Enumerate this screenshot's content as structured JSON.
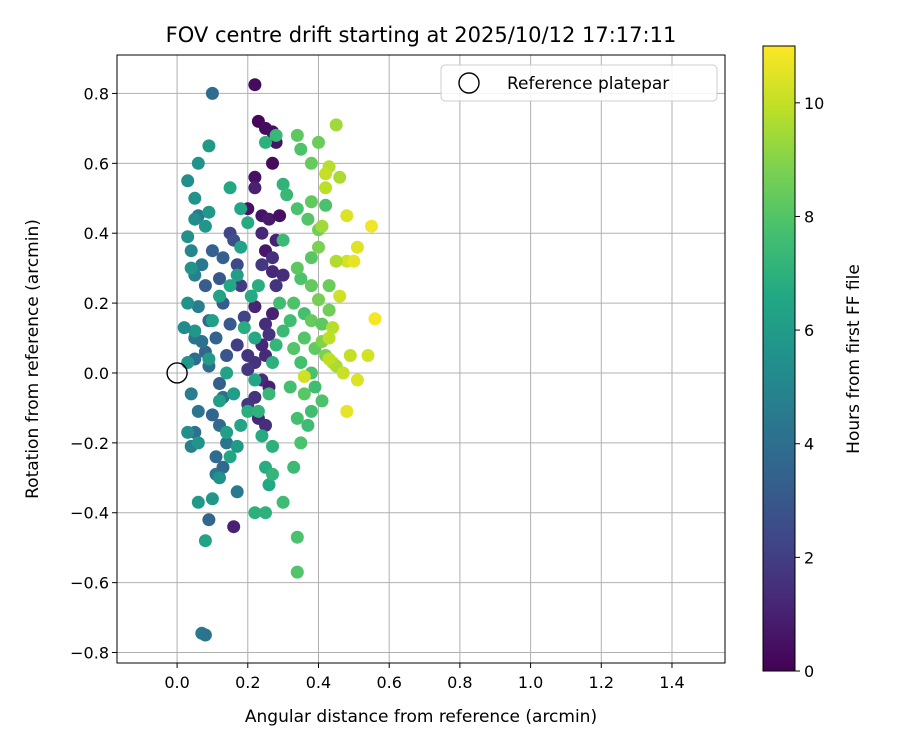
{
  "chart_data": {
    "type": "scatter",
    "title": "FOV centre drift starting at 2025/10/12 17:17:11",
    "xlabel": "Angular distance from reference (arcmin)",
    "ylabel": "Rotation from reference (arcmin)",
    "xlim": [
      -0.17,
      1.55
    ],
    "ylim": [
      -0.83,
      0.91
    ],
    "x_ticks": [
      0.0,
      0.2,
      0.4,
      0.6,
      0.8,
      1.0,
      1.2,
      1.4
    ],
    "x_tick_labels": [
      "0.0",
      "0.2",
      "0.4",
      "0.6",
      "0.8",
      "1.0",
      "1.2",
      "1.4"
    ],
    "y_ticks": [
      -0.8,
      -0.6,
      -0.4,
      -0.2,
      0.0,
      0.2,
      0.4,
      0.6,
      0.8
    ],
    "y_tick_labels": [
      "−0.8",
      "−0.6",
      "−0.4",
      "−0.2",
      "0.0",
      "0.2",
      "0.4",
      "0.6",
      "0.8"
    ],
    "grid": true,
    "legend": {
      "position": "top-right",
      "label": "Reference platepar"
    },
    "reference_point": {
      "x": 0.0,
      "y": 0.0
    },
    "colorbar": {
      "label": "Hours from first FF file",
      "min": 0,
      "max": 11,
      "colormap": "viridis",
      "ticks": [
        0,
        2,
        4,
        6,
        8,
        10
      ],
      "tick_labels": [
        "0",
        "2",
        "4",
        "6",
        "8",
        "10"
      ]
    },
    "series": [
      {
        "name": "FOV centre",
        "points": [
          [
            0.22,
            0.825,
            0.3
          ],
          [
            0.23,
            0.72,
            0.2
          ],
          [
            0.25,
            0.7,
            0.3
          ],
          [
            0.27,
            0.69,
            0.4
          ],
          [
            0.28,
            0.66,
            0.6
          ],
          [
            0.27,
            0.6,
            0.3
          ],
          [
            0.22,
            0.56,
            0.5
          ],
          [
            0.22,
            0.53,
            1.0
          ],
          [
            0.2,
            0.47,
            0.5
          ],
          [
            0.24,
            0.45,
            0.6
          ],
          [
            0.26,
            0.44,
            0.8
          ],
          [
            0.29,
            0.45,
            0.5
          ],
          [
            0.24,
            0.4,
            1.2
          ],
          [
            0.28,
            0.38,
            1.0
          ],
          [
            0.25,
            0.35,
            0.7
          ],
          [
            0.27,
            0.33,
            1.5
          ],
          [
            0.24,
            0.31,
            1.8
          ],
          [
            0.27,
            0.29,
            1.2
          ],
          [
            0.3,
            0.28,
            1.4
          ],
          [
            0.28,
            0.25,
            1.6
          ],
          [
            0.22,
            0.19,
            1.1
          ],
          [
            0.27,
            0.17,
            1.0
          ],
          [
            0.25,
            0.14,
            1.4
          ],
          [
            0.26,
            0.11,
            1.6
          ],
          [
            0.24,
            0.08,
            1.2
          ],
          [
            0.25,
            0.05,
            1.3
          ],
          [
            0.22,
            0.03,
            1.6
          ],
          [
            0.2,
            0.01,
            1.8
          ],
          [
            0.24,
            -0.02,
            1.4
          ],
          [
            0.26,
            -0.04,
            1.0
          ],
          [
            0.22,
            -0.07,
            1.6
          ],
          [
            0.2,
            -0.09,
            1.8
          ],
          [
            0.23,
            -0.13,
            1.2
          ],
          [
            0.25,
            -0.15,
            1.5
          ],
          [
            0.16,
            -0.44,
            1.0
          ],
          [
            0.17,
            0.08,
            2.0
          ],
          [
            0.19,
            0.16,
            2.2
          ],
          [
            0.18,
            0.25,
            1.9
          ],
          [
            0.17,
            0.31,
            2.4
          ],
          [
            0.15,
            0.4,
            2.2
          ],
          [
            0.2,
            0.05,
            1.7
          ],
          [
            0.1,
            0.8,
            3.9
          ],
          [
            0.08,
            0.25,
            3.2
          ],
          [
            0.1,
            0.35,
            3.4
          ],
          [
            0.09,
            0.15,
            3.7
          ],
          [
            0.11,
            0.1,
            3.5
          ],
          [
            0.09,
            0.02,
            3.9
          ],
          [
            0.12,
            -0.03,
            3.3
          ],
          [
            0.13,
            -0.07,
            4.1
          ],
          [
            0.1,
            -0.12,
            3.6
          ],
          [
            0.12,
            -0.15,
            3.8
          ],
          [
            0.14,
            -0.2,
            4.2
          ],
          [
            0.11,
            -0.24,
            3.9
          ],
          [
            0.09,
            -0.42,
            3.6
          ],
          [
            0.11,
            -0.29,
            4.3
          ],
          [
            0.13,
            -0.27,
            3.7
          ],
          [
            0.17,
            -0.34,
            4.5
          ],
          [
            0.07,
            -0.745,
            4.5
          ],
          [
            0.08,
            -0.75,
            4.2
          ],
          [
            0.05,
            0.1,
            4.2
          ],
          [
            0.06,
            0.19,
            4.6
          ],
          [
            0.07,
            0.31,
            4.4
          ],
          [
            0.05,
            0.04,
            3.9
          ],
          [
            0.04,
            -0.06,
            4.6
          ],
          [
            0.06,
            -0.11,
            4.3
          ],
          [
            0.05,
            -0.17,
            4.1
          ],
          [
            0.04,
            -0.21,
            4.8
          ],
          [
            0.13,
            0.2,
            3.2
          ],
          [
            0.15,
            0.14,
            3.1
          ],
          [
            0.14,
            0.05,
            2.9
          ],
          [
            0.12,
            0.27,
            3.0
          ],
          [
            0.16,
            0.38,
            2.6
          ],
          [
            0.13,
            0.33,
            3.4
          ],
          [
            0.08,
            0.06,
            3.6
          ],
          [
            0.05,
            0.28,
            4.8
          ],
          [
            0.04,
            0.35,
            5.0
          ],
          [
            0.06,
            0.45,
            4.5
          ],
          [
            0.07,
            0.09,
            4.1
          ],
          [
            0.03,
            0.55,
            5.4
          ],
          [
            0.05,
            0.5,
            5.6
          ],
          [
            0.05,
            0.44,
            5.3
          ],
          [
            0.03,
            0.39,
            5.5
          ],
          [
            0.08,
            0.42,
            5.8
          ],
          [
            0.09,
            0.46,
            5.9
          ],
          [
            0.09,
            0.65,
            5.9
          ],
          [
            0.06,
            0.6,
            5.6
          ],
          [
            0.04,
            0.3,
            5.6
          ],
          [
            0.03,
            0.2,
            5.5
          ],
          [
            0.05,
            0.12,
            5.8
          ],
          [
            0.02,
            0.13,
            5.2
          ],
          [
            0.03,
            0.03,
            5.7
          ],
          [
            0.03,
            -0.17,
            5.4
          ],
          [
            0.06,
            -0.2,
            5.6
          ],
          [
            0.06,
            -0.37,
            5.9
          ],
          [
            0.1,
            -0.36,
            5.8
          ],
          [
            0.12,
            -0.3,
            5.5
          ],
          [
            0.08,
            -0.48,
            6.3
          ],
          [
            0.14,
            -0.17,
            6.2
          ],
          [
            0.15,
            -0.24,
            6.5
          ],
          [
            0.17,
            -0.21,
            6.0
          ],
          [
            0.18,
            -0.15,
            6.4
          ],
          [
            0.12,
            -0.08,
            6.2
          ],
          [
            0.16,
            -0.06,
            6.1
          ],
          [
            0.14,
            0.0,
            6.3
          ],
          [
            0.09,
            0.04,
            6.0
          ],
          [
            0.1,
            0.15,
            6.2
          ],
          [
            0.12,
            0.22,
            6.4
          ],
          [
            0.15,
            0.25,
            6.6
          ],
          [
            0.17,
            0.28,
            6.1
          ],
          [
            0.15,
            0.53,
            6.6
          ],
          [
            0.18,
            0.47,
            6.5
          ],
          [
            0.2,
            0.43,
            6.7
          ],
          [
            0.18,
            0.36,
            6.3
          ],
          [
            0.19,
            0.13,
            6.8
          ],
          [
            0.21,
            0.22,
            6.7
          ],
          [
            0.23,
            0.25,
            6.9
          ],
          [
            0.22,
            0.1,
            6.6
          ],
          [
            0.22,
            -0.02,
            6.5
          ],
          [
            0.2,
            -0.11,
            6.9
          ],
          [
            0.24,
            -0.18,
            6.7
          ],
          [
            0.25,
            -0.27,
            6.8
          ],
          [
            0.26,
            -0.32,
            6.6
          ],
          [
            0.22,
            -0.4,
            7.0
          ],
          [
            0.25,
            -0.4,
            7.0
          ],
          [
            0.27,
            -0.29,
            7.2
          ],
          [
            0.23,
            -0.11,
            7.1
          ],
          [
            0.26,
            -0.06,
            7.3
          ],
          [
            0.27,
            0.03,
            7.0
          ],
          [
            0.28,
            0.08,
            7.2
          ],
          [
            0.3,
            0.12,
            7.4
          ],
          [
            0.29,
            0.2,
            7.6
          ],
          [
            0.3,
            0.38,
            7.4
          ],
          [
            0.28,
            0.68,
            7.3
          ],
          [
            0.25,
            0.66,
            7.0
          ],
          [
            0.3,
            0.54,
            7.1
          ],
          [
            0.31,
            0.51,
            7.3
          ],
          [
            0.3,
            -0.37,
            7.5
          ],
          [
            0.27,
            -0.21,
            7.0
          ],
          [
            0.34,
            0.68,
            8.2
          ],
          [
            0.35,
            0.64,
            7.9
          ],
          [
            0.38,
            0.6,
            8.4
          ],
          [
            0.4,
            0.66,
            8.5
          ],
          [
            0.34,
            0.47,
            7.8
          ],
          [
            0.37,
            0.44,
            8.0
          ],
          [
            0.38,
            0.49,
            8.3
          ],
          [
            0.42,
            0.48,
            7.8
          ],
          [
            0.4,
            0.41,
            8.6
          ],
          [
            0.38,
            0.33,
            8.1
          ],
          [
            0.4,
            0.36,
            8.8
          ],
          [
            0.35,
            0.27,
            7.9
          ],
          [
            0.38,
            0.25,
            8.3
          ],
          [
            0.43,
            0.25,
            8.5
          ],
          [
            0.4,
            0.21,
            8.7
          ],
          [
            0.36,
            0.17,
            7.7
          ],
          [
            0.38,
            0.15,
            8.4
          ],
          [
            0.41,
            0.14,
            8.2
          ],
          [
            0.43,
            0.18,
            8.6
          ],
          [
            0.32,
            0.15,
            7.6
          ],
          [
            0.33,
            0.2,
            7.9
          ],
          [
            0.36,
            0.1,
            8.0
          ],
          [
            0.39,
            0.07,
            8.3
          ],
          [
            0.41,
            0.09,
            8.9
          ],
          [
            0.42,
            0.05,
            8.8
          ],
          [
            0.33,
            0.07,
            8.0
          ],
          [
            0.35,
            0.03,
            7.7
          ],
          [
            0.38,
            0.0,
            7.8
          ],
          [
            0.39,
            -0.04,
            7.6
          ],
          [
            0.41,
            -0.08,
            7.9
          ],
          [
            0.36,
            -0.06,
            8.1
          ],
          [
            0.38,
            -0.11,
            7.6
          ],
          [
            0.34,
            -0.13,
            7.7
          ],
          [
            0.35,
            -0.2,
            7.8
          ],
          [
            0.37,
            -0.15,
            7.5
          ],
          [
            0.33,
            -0.27,
            7.4
          ],
          [
            0.34,
            -0.47,
            7.8
          ],
          [
            0.34,
            -0.57,
            8.0
          ],
          [
            0.32,
            -0.04,
            7.7
          ],
          [
            0.34,
            0.3,
            8.2
          ],
          [
            0.45,
            0.71,
            9.4
          ],
          [
            0.46,
            0.56,
            9.6
          ],
          [
            0.43,
            0.59,
            9.8
          ],
          [
            0.42,
            0.57,
            10.0
          ],
          [
            0.42,
            0.53,
            9.9
          ],
          [
            0.48,
            0.45,
            10.4
          ],
          [
            0.51,
            0.36,
            10.5
          ],
          [
            0.48,
            0.32,
            10.3
          ],
          [
            0.5,
            0.32,
            10.6
          ],
          [
            0.46,
            0.22,
            10.2
          ],
          [
            0.55,
            0.42,
            10.8
          ],
          [
            0.56,
            0.155,
            10.9
          ],
          [
            0.44,
            0.13,
            9.8
          ],
          [
            0.43,
            0.1,
            9.9
          ],
          [
            0.44,
            0.03,
            10.0
          ],
          [
            0.45,
            0.02,
            9.6
          ],
          [
            0.47,
            0.0,
            10.1
          ],
          [
            0.51,
            -0.02,
            10.4
          ],
          [
            0.49,
            0.05,
            10.0
          ],
          [
            0.48,
            -0.11,
            10.6
          ],
          [
            0.54,
            0.05,
            10.3
          ],
          [
            0.36,
            -0.01,
            10.2
          ],
          [
            0.43,
            0.04,
            9.9
          ],
          [
            0.45,
            0.32,
            9.7
          ],
          [
            0.41,
            0.42,
            9.4
          ]
        ]
      }
    ]
  }
}
